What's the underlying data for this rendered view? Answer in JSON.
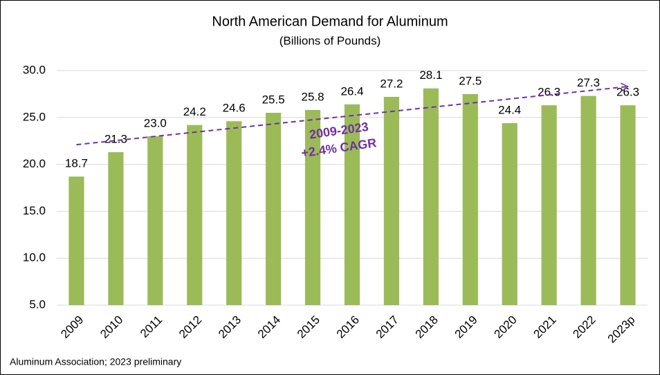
{
  "chart_data": {
    "type": "bar",
    "title": "North American Demand for Aluminum",
    "subtitle": "(Billions of Pounds)",
    "categories": [
      "2009",
      "2010",
      "2011",
      "2012",
      "2013",
      "2014",
      "2015",
      "2016",
      "2017",
      "2018",
      "2019",
      "2020",
      "2021",
      "2022",
      "2023p"
    ],
    "values": [
      18.7,
      21.3,
      23.0,
      24.2,
      24.6,
      25.5,
      25.8,
      26.4,
      27.2,
      28.1,
      27.5,
      24.4,
      26.3,
      27.3,
      26.3
    ],
    "value_labels": [
      "18.7",
      "21.3",
      "23.0",
      "24.2",
      "24.6",
      "25.5",
      "25.8",
      "26.4",
      "27.2",
      "28.1",
      "27.5",
      "24.4",
      "26.3",
      "27.3",
      "26.3"
    ],
    "color": "#9bbb59",
    "ylim": [
      5,
      30
    ],
    "yticks": [
      {
        "value": 5,
        "label": "5.0"
      },
      {
        "value": 10,
        "label": "10.0"
      },
      {
        "value": 15,
        "label": "15.0"
      },
      {
        "value": 20,
        "label": "20.0"
      },
      {
        "value": 25,
        "label": "25.0"
      },
      {
        "value": 30,
        "label": "30.0"
      }
    ],
    "grid": true,
    "trend": {
      "values": [
        22.1,
        28.3
      ],
      "color": "#7030a0",
      "annotation": [
        "2009-2023",
        "+2.4% CAGR"
      ]
    },
    "source": "Aluminum Association; 2023 preliminary"
  }
}
